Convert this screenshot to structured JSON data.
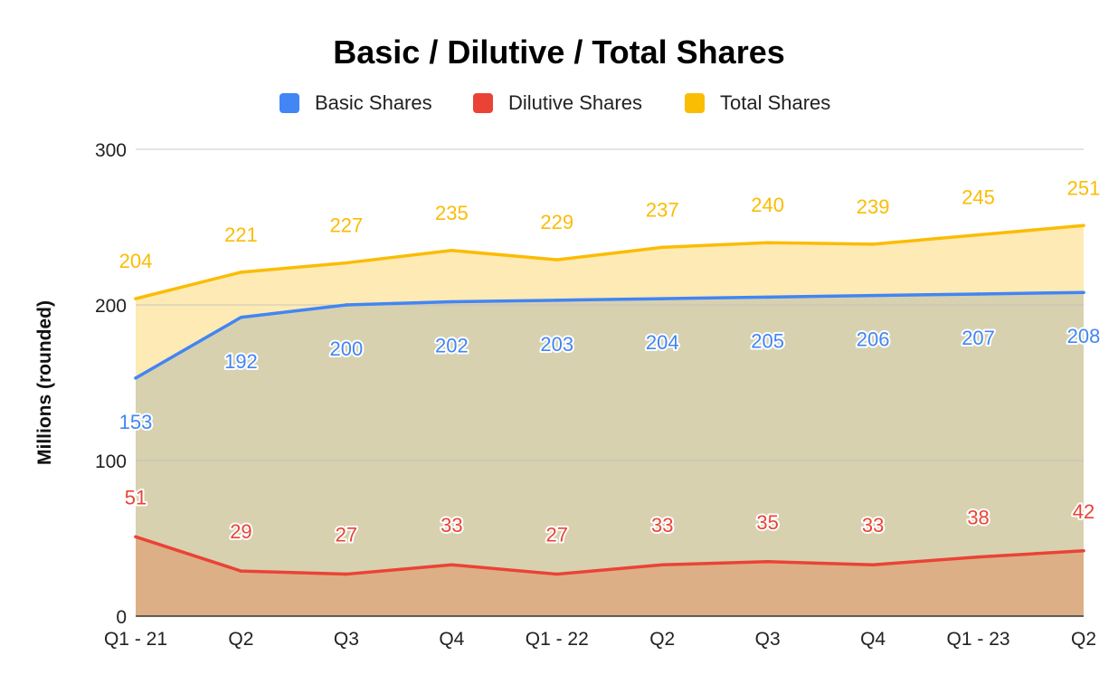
{
  "chart_data": {
    "type": "area",
    "title": "Basic / Dilutive / Total Shares",
    "xlabel": "",
    "ylabel": "Millions (rounded)",
    "ylim": [
      0,
      300
    ],
    "yticks": [
      0,
      100,
      200,
      300
    ],
    "grid": true,
    "legend_position": "top",
    "categories": [
      "Q1 - 21",
      "Q2",
      "Q3",
      "Q4",
      "Q1 - 22",
      "Q2",
      "Q3",
      "Q4",
      "Q1 - 23",
      "Q2"
    ],
    "series": [
      {
        "name": "Basic Shares",
        "color": "#4285f4",
        "values": [
          153,
          192,
          200,
          202,
          203,
          204,
          205,
          206,
          207,
          208
        ]
      },
      {
        "name": "Dilutive Shares",
        "color": "#ea4335",
        "values": [
          51,
          29,
          27,
          33,
          27,
          33,
          35,
          33,
          38,
          42
        ]
      },
      {
        "name": "Total Shares",
        "color": "#fbbc04",
        "values": [
          204,
          221,
          227,
          235,
          229,
          237,
          240,
          239,
          245,
          251
        ]
      }
    ]
  }
}
